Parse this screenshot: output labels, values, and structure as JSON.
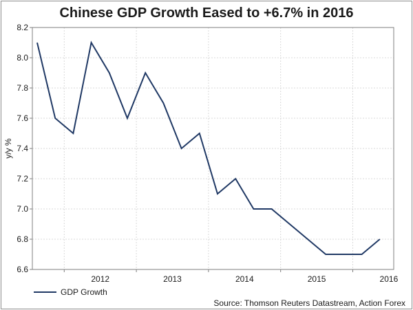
{
  "chart_data": {
    "type": "line",
    "title": "Chinese GDP Growth Eased to +6.7% in 2016",
    "xlabel": "",
    "ylabel": "y/y %",
    "ylim": [
      6.6,
      8.2
    ],
    "yticks": [
      "6.6",
      "6.8",
      "7.0",
      "7.2",
      "7.4",
      "7.6",
      "7.8",
      "8.0",
      "8.2"
    ],
    "xticks": [
      "2012",
      "2013",
      "2014",
      "2015",
      "2016"
    ],
    "grid": true,
    "legend_position": "bottom-left",
    "series": [
      {
        "name": "GDP Growth",
        "color": "#1f3864",
        "x": [
          "2011-Q3",
          "2011-Q4",
          "2012-Q1",
          "2012-Q2",
          "2012-Q3",
          "2012-Q4",
          "2013-Q1",
          "2013-Q2",
          "2013-Q3",
          "2013-Q4",
          "2014-Q1",
          "2014-Q2",
          "2014-Q3",
          "2014-Q4",
          "2015-Q1",
          "2015-Q2",
          "2015-Q3",
          "2015-Q4",
          "2016-Q1",
          "2016-Q2",
          "2016-Q3"
        ],
        "values": [
          8.1,
          7.6,
          7.5,
          8.1,
          7.9,
          7.6,
          7.9,
          7.7,
          7.4,
          7.5,
          7.1,
          7.2,
          7.0,
          7.0,
          6.9,
          6.8,
          6.7,
          6.7,
          6.7,
          6.8,
          null
        ]
      }
    ],
    "source": "Source: Thomson Reuters Datastream, Action Forex"
  }
}
